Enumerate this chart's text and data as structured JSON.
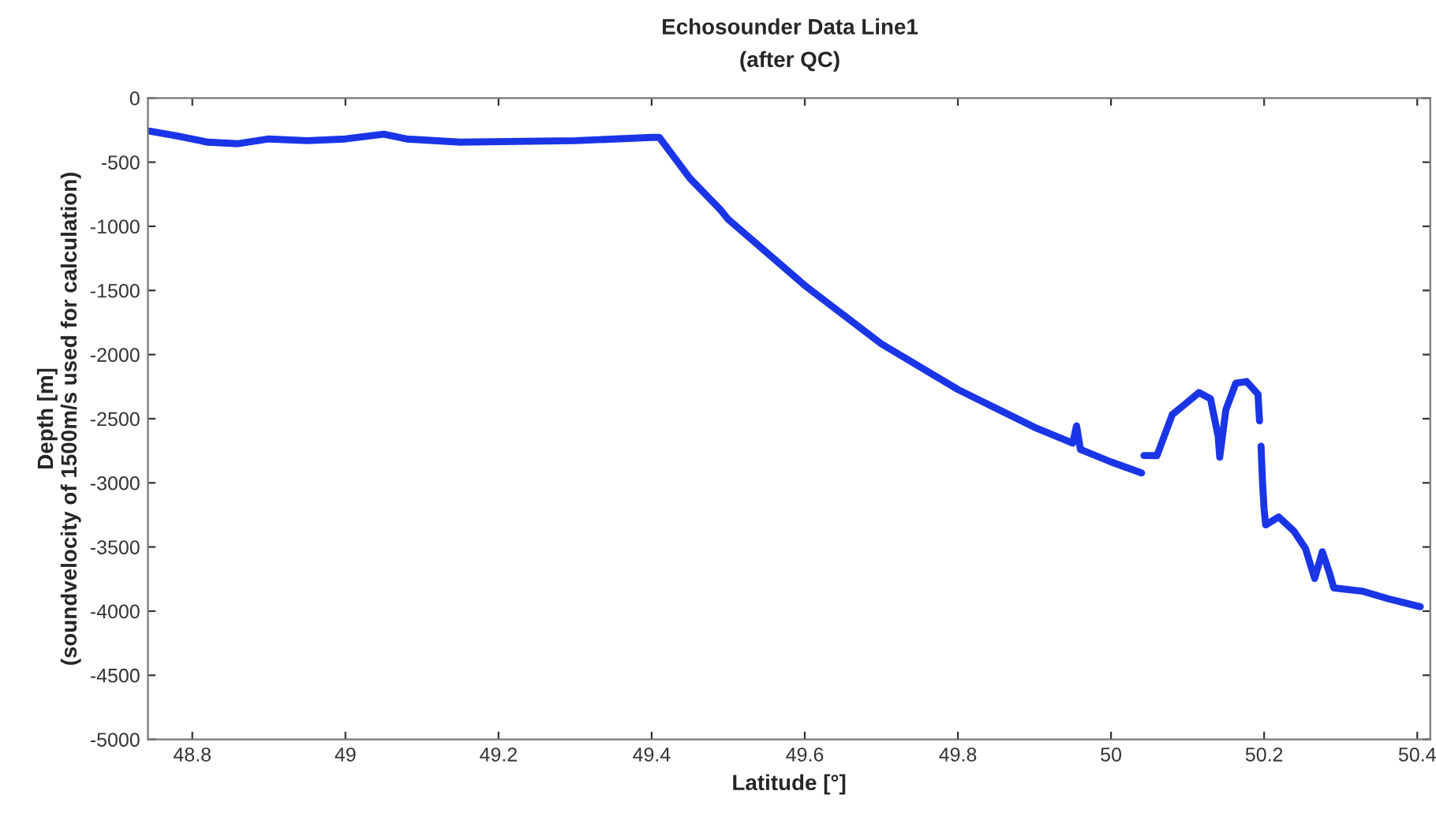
{
  "chart_data": {
    "type": "line",
    "title": "Echosounder Data Line1",
    "subtitle": "(after QC)",
    "xlabel": "Latitude [°]",
    "ylabel": "Depth [m]\n(soundvelocity of 1500m/s used for calculation)",
    "xlim": [
      48.742,
      50.417
    ],
    "xticks": [
      48.8,
      49,
      49.2,
      49.4,
      49.6,
      49.8,
      50,
      50.2,
      50.4
    ],
    "ylim": [
      -5000,
      0
    ],
    "yticks": [
      -5000,
      -4500,
      -4000,
      -3500,
      -3000,
      -2500,
      -2000,
      -1500,
      -1000,
      -500,
      0
    ],
    "grid": false,
    "marker": "none",
    "line_style": "solid",
    "series": [
      {
        "color": "#1a35e6",
        "x": [
          48.745,
          48.78,
          48.82,
          48.86,
          48.9,
          48.95,
          49.0,
          49.05,
          49.08,
          49.15,
          49.3,
          49.4,
          49.41,
          49.45,
          49.49,
          49.5,
          49.6,
          49.7,
          49.8,
          49.9,
          49.95,
          49.955,
          49.96,
          50.0,
          50.04,
          50.042,
          50.043,
          50.06,
          50.08,
          50.095,
          50.115,
          50.13,
          50.14,
          50.142,
          50.15,
          50.163,
          50.177,
          50.192,
          50.194,
          50.195,
          50.196,
          50.198,
          50.2,
          50.202,
          50.219,
          50.239,
          50.254,
          50.266,
          50.276,
          50.285,
          50.291,
          50.328,
          50.363,
          50.404
        ],
        "values": [
          -258,
          -295,
          -344,
          -356,
          -319,
          -332,
          -319,
          -282,
          -319,
          -344,
          -332,
          -307,
          -307,
          -626,
          -872,
          -946,
          -1461,
          -1916,
          -2272,
          -2567,
          -2690,
          -2555,
          -2739,
          -2837,
          -2923,
          null,
          -2787,
          -2788,
          -2468,
          -2395,
          -2296,
          -2345,
          -2640,
          -2800,
          -2431,
          -2223,
          -2210,
          -2309,
          -2517,
          null,
          -2714,
          -3008,
          -3205,
          -3328,
          -3266,
          -3377,
          -3512,
          -3745,
          -3537,
          -3696,
          -3819,
          -3844,
          -3905,
          -3966
        ]
      }
    ]
  }
}
